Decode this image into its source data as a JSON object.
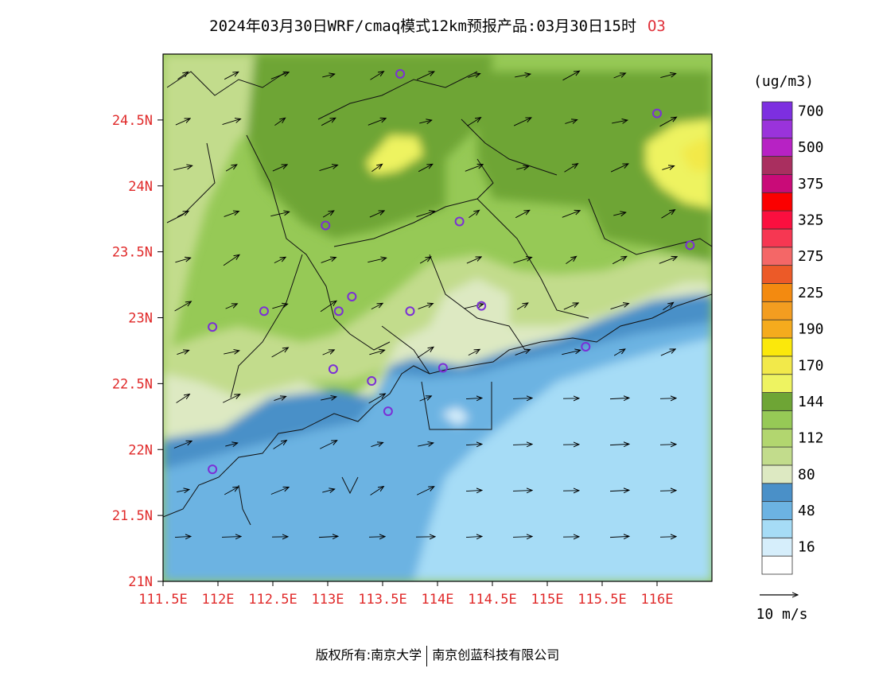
{
  "title": {
    "text": "2024年03月30日WRF/cmaq模式12km预报产品:03月30日15时",
    "pollutant": "O3"
  },
  "map": {
    "lat_labels": [
      "24.5N",
      "24N",
      "23.5N",
      "23N",
      "22.5N",
      "22N",
      "21.5N",
      "21N"
    ],
    "lon_labels": [
      "111.5E",
      "112E",
      "112.5E",
      "113E",
      "113.5E",
      "114E",
      "114.5E",
      "115E",
      "115.5E",
      "116E"
    ],
    "lat_values": [
      24.5,
      24.0,
      23.5,
      23.0,
      22.5,
      22.0,
      21.5,
      21.0
    ],
    "lon_values": [
      111.5,
      112.0,
      112.5,
      113.0,
      113.5,
      114.0,
      114.5,
      115.0,
      115.5,
      116.0
    ],
    "extent": {
      "lon_min": 111.5,
      "lon_max": 116.5,
      "lat_min": 21.0,
      "lat_max": 25.0
    },
    "wind_direction": "mostly west-southwest to east-northeast",
    "stations": [
      {
        "lon": 113.66,
        "lat": 24.85
      },
      {
        "lon": 116.0,
        "lat": 24.55
      },
      {
        "lon": 112.98,
        "lat": 23.7
      },
      {
        "lon": 114.2,
        "lat": 23.73
      },
      {
        "lon": 116.3,
        "lat": 23.55
      },
      {
        "lon": 113.22,
        "lat": 23.16
      },
      {
        "lon": 112.42,
        "lat": 23.05
      },
      {
        "lon": 113.1,
        "lat": 23.05
      },
      {
        "lon": 113.75,
        "lat": 23.05
      },
      {
        "lon": 114.4,
        "lat": 23.09
      },
      {
        "lon": 111.95,
        "lat": 22.93
      },
      {
        "lon": 113.05,
        "lat": 22.61
      },
      {
        "lon": 113.4,
        "lat": 22.52
      },
      {
        "lon": 114.05,
        "lat": 22.62
      },
      {
        "lon": 115.35,
        "lat": 22.78
      },
      {
        "lon": 113.55,
        "lat": 22.29
      },
      {
        "lon": 111.95,
        "lat": 21.85
      }
    ]
  },
  "colorbar": {
    "unit": "(ug/m3)",
    "colors": [
      "#ffffff",
      "#d6eefb",
      "#a6dcf6",
      "#6cb3e2",
      "#4a90c8",
      "#dde9c2",
      "#c2dc8c",
      "#b2d66f",
      "#96c956",
      "#6ea535",
      "#eef361",
      "#f2e94a",
      "#fbe80b",
      "#f5ab1d",
      "#f39d20",
      "#f38a10",
      "#ec5a28",
      "#f46767",
      "#f63752",
      "#fb0f3f",
      "#fb0000",
      "#c90b78",
      "#a92f5f",
      "#b722c4",
      "#9a33db",
      "#7d2fe0"
    ],
    "labels": [
      "16",
      "48",
      "80",
      "112",
      "144",
      "170",
      "190",
      "225",
      "275",
      "325",
      "375",
      "500",
      "700"
    ]
  },
  "wind_scale": {
    "label": "10 m/s"
  },
  "footer": {
    "left": "版权所有:南京大学",
    "right": "南京创蓝科技有限公司"
  }
}
